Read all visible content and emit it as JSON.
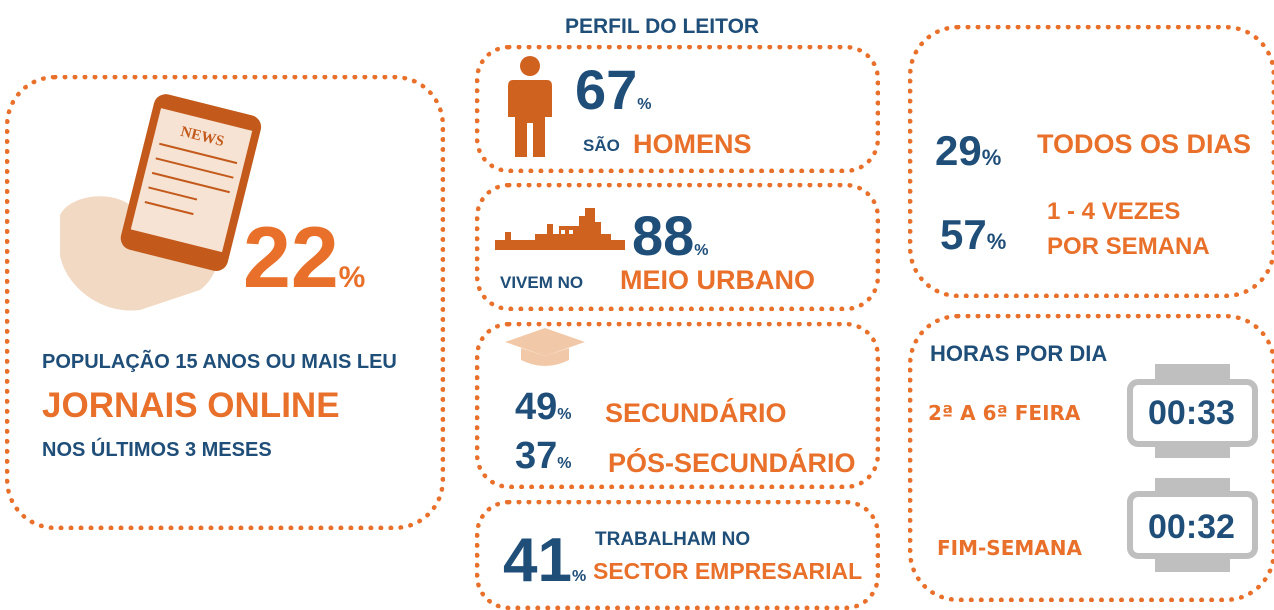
{
  "main": {
    "value": "22",
    "unit": "%",
    "line1": "POPULAÇÃO 15 ANOS OU MAIS LEU",
    "line2": "JORNAIS ONLINE",
    "line3": "NOS ÚLTIMOS 3 MESES",
    "phone_text": "NEWS"
  },
  "profile": {
    "title": "PERFIL DO LEITOR",
    "gender": {
      "value": "67",
      "unit": "%",
      "prefix": "SÃO",
      "label": "HOMENS"
    },
    "urban": {
      "value": "88",
      "unit": "%",
      "prefix": "VIVEM NO",
      "label": "MEIO URBANO"
    },
    "education": [
      {
        "value": "49",
        "unit": "%",
        "label": "SECUNDÁRIO"
      },
      {
        "value": "37",
        "unit": "%",
        "label": "PÓS-SECUNDÁRIO"
      }
    ],
    "work": {
      "value": "41",
      "unit": "%",
      "line1": "TRABALHAM NO",
      "line2": "SECTOR EMPRESARIAL"
    }
  },
  "frequency": [
    {
      "value": "29",
      "unit": "%",
      "label": [
        "TODOS OS DIAS"
      ]
    },
    {
      "value": "57",
      "unit": "%",
      "label": [
        "1 - 4 VEZES",
        "POR SEMANA"
      ]
    }
  ],
  "hours": {
    "title": "HORAS POR DIA",
    "rows": [
      {
        "label": "2ª A 6ª FEIRA",
        "time": "00:33"
      },
      {
        "label": "FIM-SEMANA",
        "time": "00:32"
      }
    ]
  }
}
